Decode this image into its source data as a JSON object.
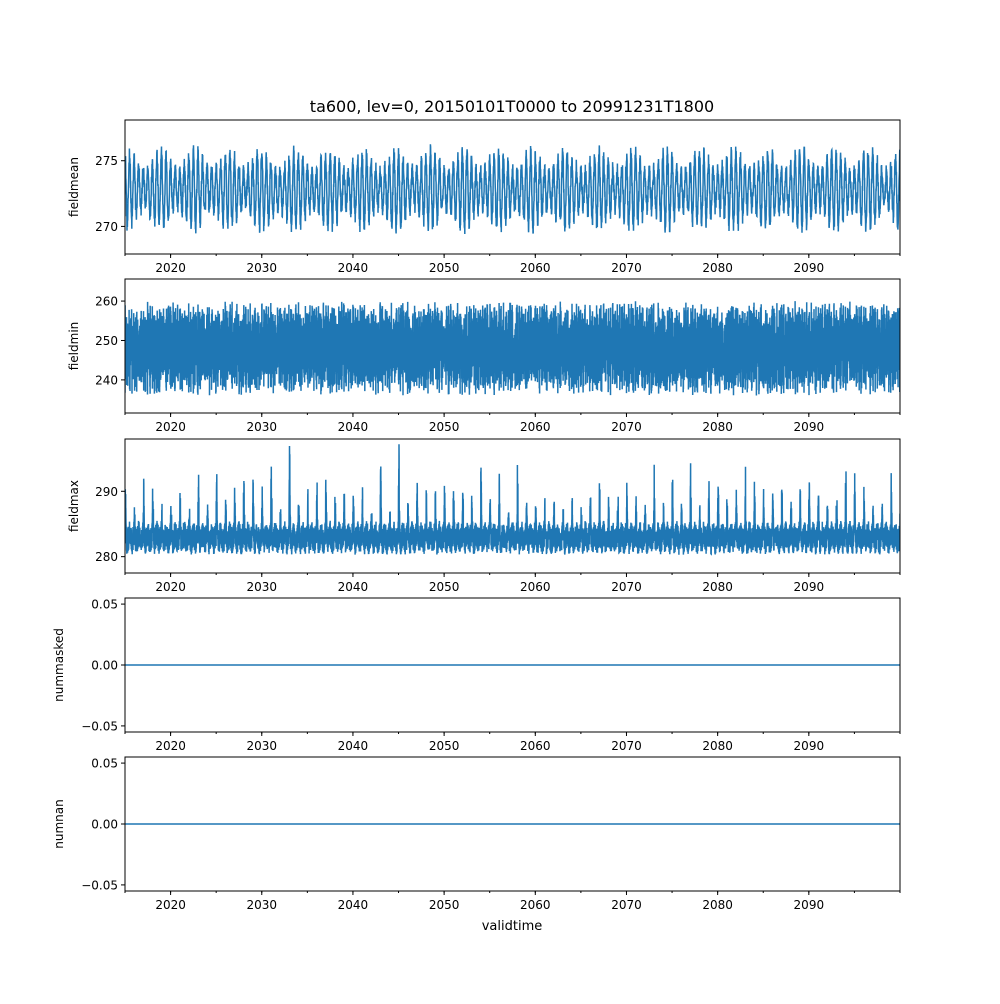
{
  "chart_data": {
    "type": "line",
    "title": "ta600, lev=0, 20150101T0000 to 20991231T1800",
    "xlabel": "validtime",
    "xlim": [
      2015,
      2100
    ],
    "xticks": [
      "2020",
      "2030",
      "2040",
      "2050",
      "2060",
      "2070",
      "2080",
      "2090"
    ],
    "minor_xticks_every_years": 5,
    "line_color": "#1f77b4",
    "subplots": [
      {
        "ylabel": "fieldmean",
        "ylim": [
          267.9,
          278.1
        ],
        "yticks": [
          "270",
          "275"
        ],
        "ytick_values": [
          270,
          275
        ],
        "series": {
          "kind": "seasonal",
          "mean": 272.8,
          "amplitude": 2.4,
          "cycles_per_year": 2,
          "noise": 0.7,
          "min": 268.3,
          "max": 277.7
        }
      },
      {
        "ylabel": "fieldmin",
        "ylim": [
          231.6,
          265.6
        ],
        "yticks": [
          "240",
          "250",
          "260"
        ],
        "ytick_values": [
          240,
          250,
          260
        ],
        "series": {
          "kind": "dense",
          "mean": 248,
          "amplitude": 5,
          "cycles_per_year": 2,
          "noise": 7,
          "min": 233.5,
          "max": 264
        }
      },
      {
        "ylabel": "fieldmax",
        "ylim": [
          277.5,
          298.0
        ],
        "yticks": [
          "280",
          "290"
        ],
        "ytick_values": [
          280,
          290
        ],
        "series": {
          "kind": "spiky",
          "base": 280.3,
          "band": 4,
          "spike_mean": 7,
          "min": 278.7,
          "max": 297.2
        }
      },
      {
        "ylabel": "nummasked",
        "ylim": [
          -0.055,
          0.055
        ],
        "yticks": [
          "−0.05",
          "0.00",
          "0.05"
        ],
        "ytick_values": [
          -0.05,
          0,
          0.05
        ],
        "series": {
          "kind": "constant",
          "value": 0
        }
      },
      {
        "ylabel": "numnan",
        "ylim": [
          -0.055,
          0.055
        ],
        "yticks": [
          "−0.05",
          "0.00",
          "0.05"
        ],
        "ytick_values": [
          -0.05,
          0,
          0.05
        ],
        "series": {
          "kind": "constant",
          "value": 0
        }
      }
    ]
  }
}
